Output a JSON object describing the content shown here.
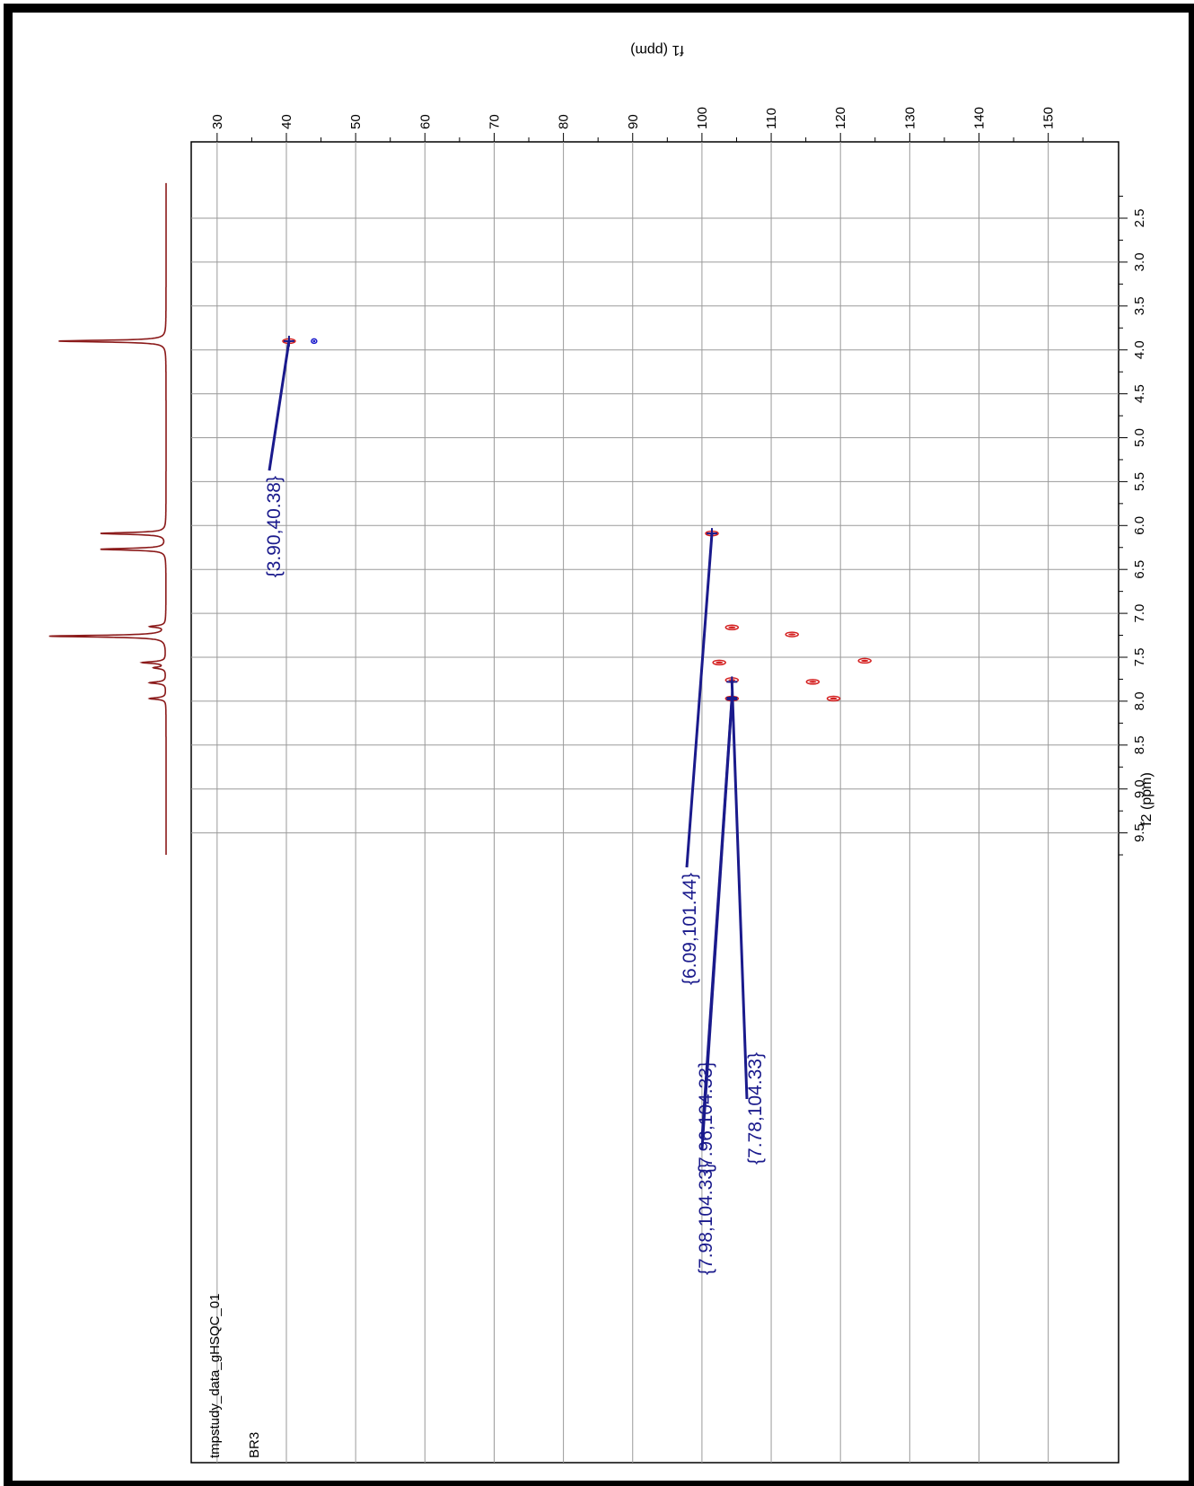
{
  "chart_data": {
    "type": "heatmap",
    "subtype": "2D NMR gHSQC contour plot with 1H projection",
    "f1_axis": {
      "label": "f1 (ppm)",
      "range": [
        26,
        160
      ],
      "ticks": [
        30,
        40,
        50,
        60,
        70,
        80,
        90,
        100,
        110,
        120,
        130,
        140,
        150
      ]
    },
    "f2_axis": {
      "label": "f2 (ppm)",
      "range": [
        2.1,
        9.7
      ],
      "ticks": [
        "2.5",
        "3.0",
        "3.5",
        "4.0",
        "4.5",
        "5.0",
        "5.5",
        "6.0",
        "6.5",
        "7.0",
        "7.5",
        "8.0",
        "8.5",
        "9.0",
        "9.5"
      ]
    },
    "grid": true,
    "dataset_label": "tmpstudy_data_gHSQC_01",
    "sample_label": "BR3",
    "annotations": [
      {
        "label": "{3.90,40.38}",
        "f2": 3.9,
        "f1": 40.38
      },
      {
        "label": "{6.09,101.44}",
        "f2": 6.09,
        "f1": 101.44
      },
      {
        "label": "{7.96,104.33}",
        "f2": 7.96,
        "f1": 104.33
      },
      {
        "label": "{7.78,104.33}",
        "f2": 7.78,
        "f1": 104.33
      },
      {
        "label": "{7.98,104.33}",
        "f2": 7.98,
        "f1": 104.33
      }
    ],
    "cross_peaks": [
      {
        "f2": 3.9,
        "f1": 40.38
      },
      {
        "f2": 3.9,
        "f1": 44.0
      },
      {
        "f2": 6.09,
        "f1": 101.44
      },
      {
        "f2": 7.16,
        "f1": 104.33
      },
      {
        "f2": 7.24,
        "f1": 113.0
      },
      {
        "f2": 7.54,
        "f1": 123.5
      },
      {
        "f2": 7.56,
        "f1": 102.5
      },
      {
        "f2": 7.76,
        "f1": 104.33
      },
      {
        "f2": 7.78,
        "f1": 116.0
      },
      {
        "f2": 7.97,
        "f1": 104.33
      },
      {
        "f2": 7.97,
        "f1": 119.0
      }
    ],
    "projection_peaks": [
      {
        "f2": 3.9,
        "height": 0.92
      },
      {
        "f2": 6.09,
        "height": 0.56
      },
      {
        "f2": 6.27,
        "height": 0.56
      },
      {
        "f2": 7.15,
        "height": 0.13
      },
      {
        "f2": 7.26,
        "height": 1.0
      },
      {
        "f2": 7.56,
        "height": 0.2
      },
      {
        "f2": 7.62,
        "height": 0.1
      },
      {
        "f2": 7.79,
        "height": 0.14
      },
      {
        "f2": 7.97,
        "height": 0.14
      }
    ],
    "colors": {
      "annotation": "#1a1a8c",
      "positive_contour": "#d42020",
      "negative_contour": "#1a1acc",
      "projection": "#8b1a1a",
      "grid": "#9a9a9a",
      "frame": "#000000"
    }
  }
}
